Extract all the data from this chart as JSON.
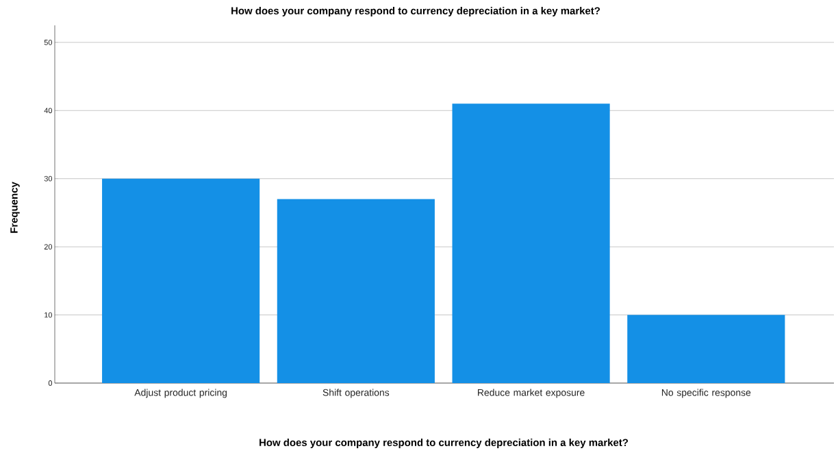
{
  "chart_data": {
    "type": "bar",
    "title": "How does your company respond to currency depreciation in a key market?",
    "xlabel": "How does your company respond to currency depreciation in a key market?",
    "ylabel": "Frequency",
    "categories": [
      "Adjust product pricing",
      "Shift operations",
      "Reduce market exposure",
      "No specific response"
    ],
    "values": [
      30,
      27,
      41,
      10
    ],
    "color": "#1490e6",
    "ylim": [
      0,
      52.5
    ],
    "yticks": [
      0,
      10,
      20,
      30,
      40,
      50
    ],
    "grid": "y"
  }
}
